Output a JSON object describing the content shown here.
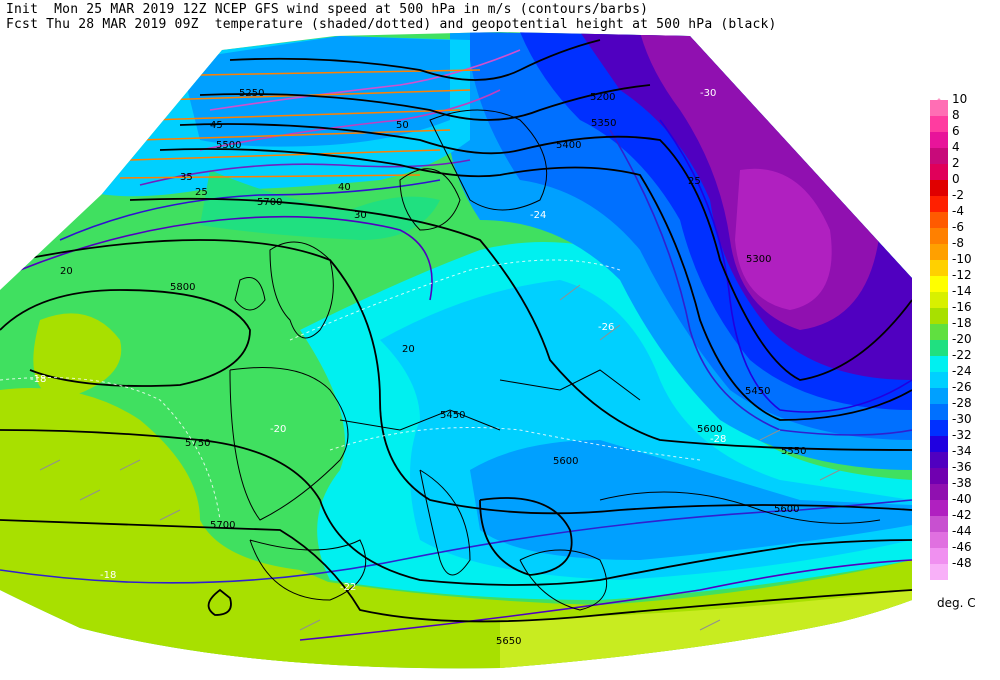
{
  "header": {
    "line1": "Init  Mon 25 MAR 2019 12Z NCEP GFS wind speed at 500 hPa in m/s (contours/barbs)",
    "line2": "Fcst Thu 28 MAR 2019 09Z  temperature (shaded/dotted) and geopotential height at 500 hPa (black)"
  },
  "legend": {
    "unit": "deg. C",
    "entries": [
      {
        "label": "10",
        "color": "#ff6eb4"
      },
      {
        "label": "8",
        "color": "#ff3ca0"
      },
      {
        "label": "6",
        "color": "#e8149a"
      },
      {
        "label": "4",
        "color": "#c80a7a"
      },
      {
        "label": "2",
        "color": "#e0005a"
      },
      {
        "label": "0",
        "color": "#e00000"
      },
      {
        "label": "-2",
        "color": "#ff2000"
      },
      {
        "label": "-4",
        "color": "#ff5a00"
      },
      {
        "label": "-6",
        "color": "#ff8000"
      },
      {
        "label": "-8",
        "color": "#ffa000"
      },
      {
        "label": "-10",
        "color": "#ffd000"
      },
      {
        "label": "-12",
        "color": "#ffff00"
      },
      {
        "label": "-14",
        "color": "#d8f000"
      },
      {
        "label": "-16",
        "color": "#a8e000"
      },
      {
        "label": "-18",
        "color": "#60e040"
      },
      {
        "label": "-20",
        "color": "#20e080"
      },
      {
        "label": "-22",
        "color": "#00f0f0"
      },
      {
        "label": "-24",
        "color": "#00d0ff"
      },
      {
        "label": "-26",
        "color": "#00a0ff"
      },
      {
        "label": "-28",
        "color": "#0070ff"
      },
      {
        "label": "-30",
        "color": "#0030ff"
      },
      {
        "label": "-32",
        "color": "#2000e0"
      },
      {
        "label": "-34",
        "color": "#5000c0"
      },
      {
        "label": "-36",
        "color": "#7000b0"
      },
      {
        "label": "-38",
        "color": "#9010b0"
      },
      {
        "label": "-40",
        "color": "#b020c0"
      },
      {
        "label": "-42",
        "color": "#c850d0"
      },
      {
        "label": "-44",
        "color": "#e070e0"
      },
      {
        "label": "-46",
        "color": "#f090f0"
      },
      {
        "label": "-48",
        "color": "#f8b0f8"
      }
    ]
  },
  "map_labels": {
    "h_5800": "5800",
    "h_5750": "5750",
    "h_5700a": "5700",
    "h_5700b": "5700",
    "h_5650": "5650",
    "h_5600a": "5600",
    "h_5600b": "5600",
    "h_5600c": "5600",
    "h_5550": "5550",
    "h_5500": "5500",
    "h_5450a": "5450",
    "h_5450b": "5450",
    "h_5400": "5400",
    "h_5350": "5350",
    "h_5300": "5300",
    "h_5250": "5250",
    "h_5200": "5200",
    "t_m18a": "-18",
    "t_m18b": "-18",
    "t_m20": "-20",
    "t_m22": "-22",
    "t_m24": "-24",
    "t_m26": "-26",
    "t_m28": "-28",
    "t_m30": "-30",
    "w_20a": "20",
    "w_20b": "20",
    "w_25a": "25",
    "w_25b": "25",
    "w_30": "30",
    "w_35": "35",
    "w_40": "40",
    "w_45": "45",
    "w_50": "50"
  }
}
